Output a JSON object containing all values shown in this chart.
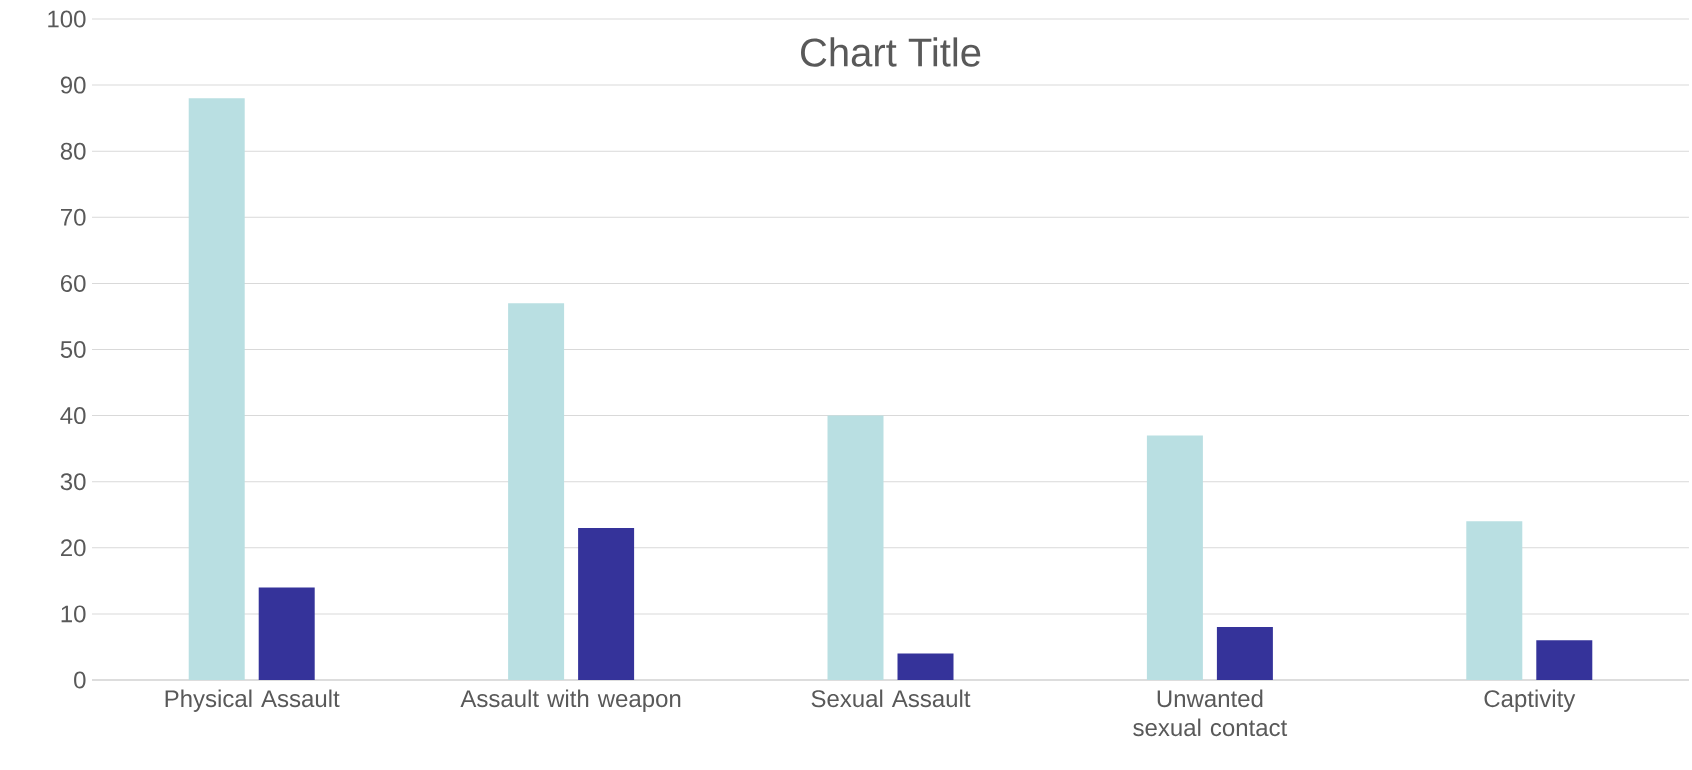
{
  "chart_data": {
    "type": "bar",
    "title": "Chart Title",
    "categories": [
      "Physical Assault",
      "Assault with weapon",
      "Sexual Assault",
      "Unwanted sexual contact",
      "Captivity"
    ],
    "series": [
      {
        "color": "#b9dfe2",
        "values": [
          88,
          57,
          40,
          37,
          24
        ]
      },
      {
        "color": "#35339a",
        "values": [
          14,
          23,
          4,
          8,
          6
        ]
      }
    ],
    "ylim": [
      0,
      100
    ],
    "yticks": [
      0,
      10,
      20,
      30,
      40,
      50,
      60,
      70,
      80,
      90,
      100
    ],
    "grid": "y"
  }
}
